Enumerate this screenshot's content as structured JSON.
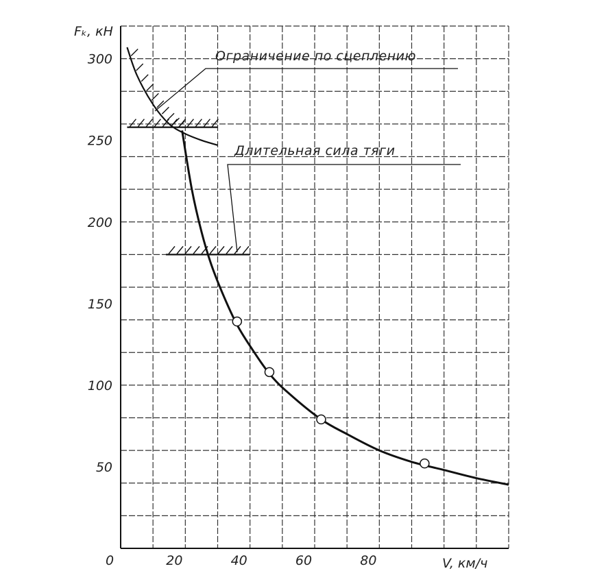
{
  "chart_data": {
    "type": "line",
    "title": "",
    "xlabel": "V, км/ч",
    "ylabel": "Fₖ, кН",
    "xlim": [
      0,
      120
    ],
    "ylim": [
      0,
      320
    ],
    "x_ticks": [
      0,
      20,
      40,
      60,
      80
    ],
    "x_tick_labels": [
      "0",
      "20",
      "40",
      "60",
      "80"
    ],
    "y_ticks": [
      50,
      100,
      150,
      200,
      250,
      300
    ],
    "y_tick_labels": [
      "50",
      "100",
      "150",
      "200",
      "250",
      "300"
    ],
    "grid": true,
    "series": [
      {
        "name": "",
        "x": [
          2,
          5,
          10,
          15,
          20,
          25,
          30
        ],
        "y": [
          307,
          290,
          272,
          260,
          254,
          250,
          247
        ]
      },
      {
        "name": "",
        "x": [
          19,
          22,
          25,
          28,
          32,
          36,
          40,
          46,
          52,
          62,
          70,
          80,
          90,
          100,
          110,
          120
        ],
        "y": [
          256,
          220,
          194,
          174,
          154,
          137,
          124,
          107,
          95,
          79,
          70,
          60,
          53,
          48,
          43,
          39
        ]
      }
    ],
    "markers": {
      "x": [
        36,
        46,
        62,
        94
      ],
      "y": [
        139,
        108,
        79,
        52
      ]
    },
    "limit_lines": [
      {
        "x_from": 2,
        "x_to": 30,
        "y": 258
      },
      {
        "x_from": 14,
        "x_to": 40,
        "y": 180
      }
    ],
    "annotations": [
      {
        "text": "Ограничение по сцеплению"
      },
      {
        "text": "Длительная сила тяги"
      }
    ]
  }
}
